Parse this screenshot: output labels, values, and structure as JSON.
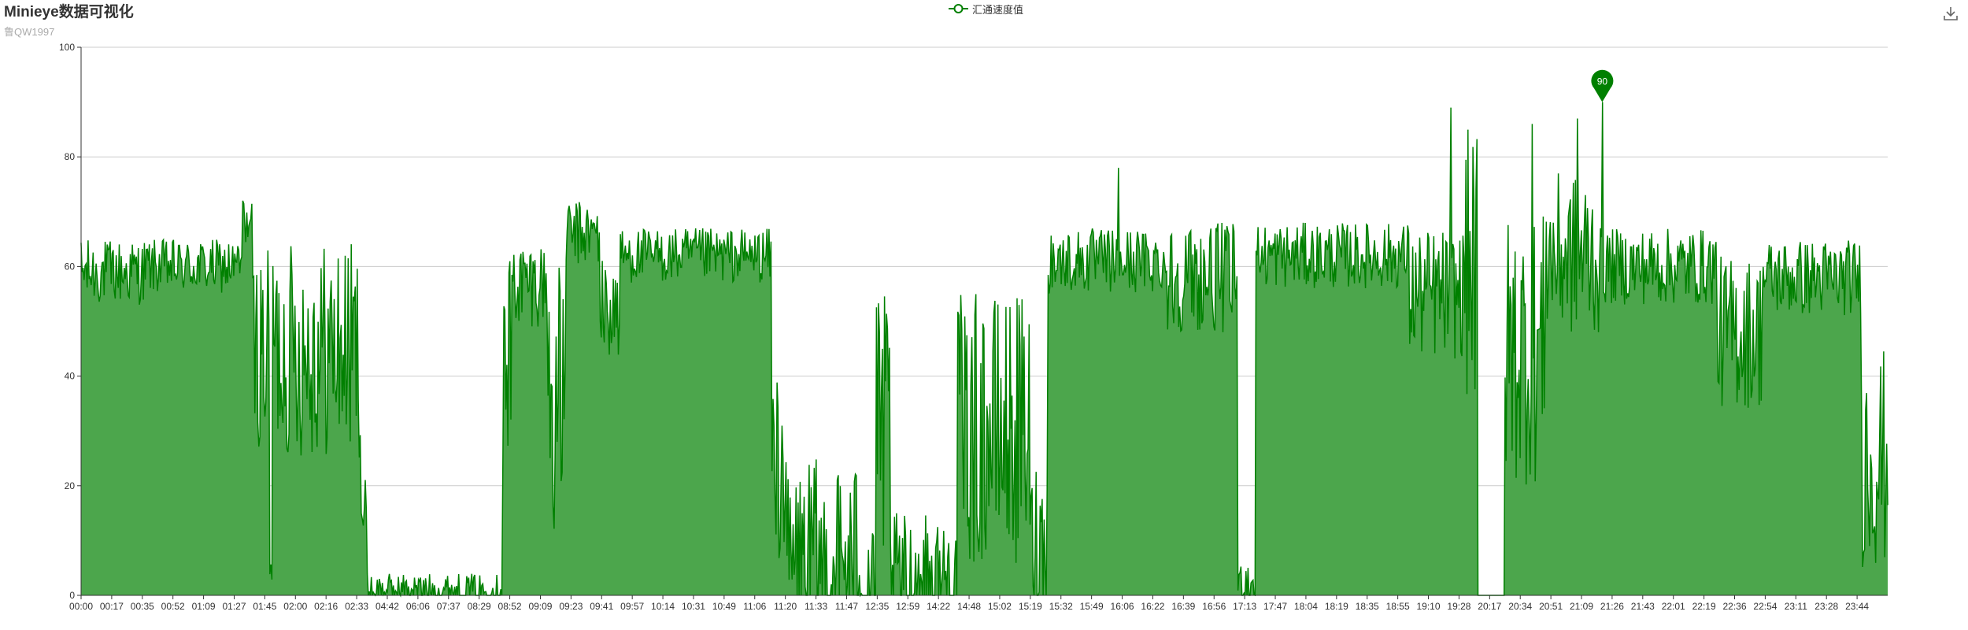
{
  "header": {
    "title": "Minieye数据可视化",
    "subtitle": "鲁QW1997"
  },
  "toolbox": {
    "save_icon": "download-icon"
  },
  "colors": {
    "series_line": "#008000",
    "series_area": "#4ca64c",
    "grid": "#cccccc",
    "axis": "#333333",
    "marker": "#008000"
  },
  "chart_data": {
    "type": "area",
    "title": "Minieye数据可视化",
    "subtitle": "鲁QW1997",
    "xlabel": "",
    "ylabel": "",
    "ylim": [
      0,
      100
    ],
    "y_ticks": [
      0,
      20,
      40,
      60,
      80,
      100
    ],
    "x_tick_labels": [
      "00:00",
      "00:17",
      "00:35",
      "00:52",
      "01:09",
      "01:27",
      "01:45",
      "02:00",
      "02:16",
      "02:33",
      "04:42",
      "06:06",
      "07:37",
      "08:29",
      "08:52",
      "09:09",
      "09:23",
      "09:41",
      "09:57",
      "10:14",
      "10:31",
      "10:49",
      "11:06",
      "11:20",
      "11:33",
      "11:47",
      "12:35",
      "12:59",
      "14:22",
      "14:48",
      "15:02",
      "15:19",
      "15:32",
      "15:49",
      "16:06",
      "16:22",
      "16:39",
      "16:56",
      "17:13",
      "17:47",
      "18:04",
      "18:19",
      "18:35",
      "18:55",
      "19:10",
      "19:28",
      "20:17",
      "20:34",
      "20:51",
      "21:09",
      "21:26",
      "21:43",
      "22:01",
      "22:19",
      "22:36",
      "22:54",
      "23:11",
      "23:28",
      "23:44"
    ],
    "grid": true,
    "legend_position": "top-center",
    "series": [
      {
        "name": "汇通速度值",
        "segments": [
          {
            "from": 0,
            "to": 0.035,
            "base": 59,
            "noise": 6
          },
          {
            "from": 0.035,
            "to": 0.09,
            "base": 60,
            "noise": 5
          },
          {
            "from": 0.09,
            "to": 0.095,
            "base": 68,
            "noise": 4
          },
          {
            "from": 0.095,
            "to": 0.104,
            "base": 45,
            "noise": 18
          },
          {
            "from": 0.104,
            "to": 0.106,
            "base": 5,
            "noise": 4
          },
          {
            "from": 0.106,
            "to": 0.155,
            "base": 45,
            "noise": 20
          },
          {
            "from": 0.155,
            "to": 0.158,
            "base": 15,
            "noise": 8
          },
          {
            "from": 0.158,
            "to": 0.233,
            "base": 1,
            "noise": 3
          },
          {
            "from": 0.233,
            "to": 0.238,
            "base": 40,
            "noise": 25
          },
          {
            "from": 0.238,
            "to": 0.258,
            "base": 57,
            "noise": 8
          },
          {
            "from": 0.258,
            "to": 0.268,
            "base": 35,
            "noise": 25
          },
          {
            "from": 0.268,
            "to": 0.287,
            "base": 66,
            "noise": 6
          },
          {
            "from": 0.287,
            "to": 0.298,
            "base": 52,
            "noise": 10
          },
          {
            "from": 0.298,
            "to": 0.382,
            "base": 62,
            "noise": 5
          },
          {
            "from": 0.382,
            "to": 0.39,
            "base": 25,
            "noise": 20
          },
          {
            "from": 0.39,
            "to": 0.44,
            "base": 5,
            "noise": 20
          },
          {
            "from": 0.44,
            "to": 0.448,
            "base": 30,
            "noise": 25
          },
          {
            "from": 0.448,
            "to": 0.485,
            "base": 3,
            "noise": 12
          },
          {
            "from": 0.485,
            "to": 0.525,
            "base": 30,
            "noise": 25
          },
          {
            "from": 0.525,
            "to": 0.535,
            "base": 10,
            "noise": 15
          },
          {
            "from": 0.535,
            "to": 0.6,
            "base": 61,
            "noise": 6
          },
          {
            "from": 0.6,
            "to": 0.64,
            "base": 58,
            "noise": 10
          },
          {
            "from": 0.64,
            "to": 0.65,
            "base": 2,
            "noise": 5
          },
          {
            "from": 0.65,
            "to": 0.735,
            "base": 62,
            "noise": 6
          },
          {
            "from": 0.735,
            "to": 0.765,
            "base": 55,
            "noise": 12
          },
          {
            "from": 0.765,
            "to": 0.773,
            "base": 60,
            "noise": 25
          },
          {
            "from": 0.773,
            "to": 0.788,
            "base": 0,
            "noise": 0
          },
          {
            "from": 0.788,
            "to": 0.81,
            "base": 45,
            "noise": 25
          },
          {
            "from": 0.81,
            "to": 0.84,
            "base": 62,
            "noise": 15
          },
          {
            "from": 0.84,
            "to": 0.905,
            "base": 60,
            "noise": 7
          },
          {
            "from": 0.905,
            "to": 0.93,
            "base": 48,
            "noise": 14
          },
          {
            "from": 0.93,
            "to": 0.985,
            "base": 58,
            "noise": 7
          },
          {
            "from": 0.985,
            "to": 1.0,
            "base": 25,
            "noise": 20
          }
        ],
        "peaks": [
          [
            0.0895,
            72
          ],
          [
            0.574,
            78
          ],
          [
            0.758,
            89
          ],
          [
            0.803,
            86
          ],
          [
            0.828,
            87
          ],
          [
            0.842,
            90
          ]
        ]
      }
    ],
    "mark_point": {
      "value": 90,
      "label": "90",
      "x_fraction": 0.842
    }
  }
}
